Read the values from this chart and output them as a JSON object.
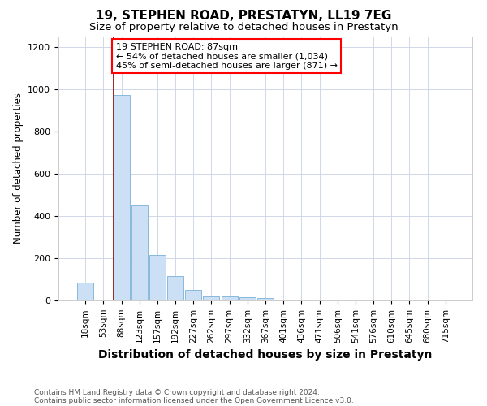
{
  "title": "19, STEPHEN ROAD, PRESTATYN, LL19 7EG",
  "subtitle": "Size of property relative to detached houses in Prestatyn",
  "xlabel": "Distribution of detached houses by size in Prestatyn",
  "ylabel": "Number of detached properties",
  "bar_labels": [
    "18sqm",
    "53sqm",
    "88sqm",
    "123sqm",
    "157sqm",
    "192sqm",
    "227sqm",
    "262sqm",
    "297sqm",
    "332sqm",
    "367sqm",
    "401sqm",
    "436sqm",
    "471sqm",
    "506sqm",
    "541sqm",
    "576sqm",
    "610sqm",
    "645sqm",
    "680sqm",
    "715sqm"
  ],
  "bar_values": [
    85,
    0,
    975,
    450,
    215,
    115,
    50,
    20,
    20,
    15,
    10,
    0,
    0,
    0,
    0,
    0,
    0,
    0,
    0,
    0,
    0
  ],
  "bar_color": "#cce0f5",
  "bar_edge_color": "#7ab0d8",
  "red_line_index": 2,
  "ylim": [
    0,
    1250
  ],
  "yticks": [
    0,
    200,
    400,
    600,
    800,
    1000,
    1200
  ],
  "annotation_text": "19 STEPHEN ROAD: 87sqm\n← 54% of detached houses are smaller (1,034)\n45% of semi-detached houses are larger (871) →",
  "annotation_box_color": "white",
  "annotation_box_edge": "red",
  "footnote1": "Contains HM Land Registry data © Crown copyright and database right 2024.",
  "footnote2": "Contains public sector information licensed under the Open Government Licence v3.0.",
  "background_color": "#ffffff",
  "grid_color": "#d0d8e8",
  "title_fontsize": 11,
  "subtitle_fontsize": 9.5,
  "xlabel_fontsize": 10,
  "ylabel_fontsize": 8.5,
  "tick_fontsize": 7.5,
  "annotation_fontsize": 8,
  "footnote_fontsize": 6.5
}
